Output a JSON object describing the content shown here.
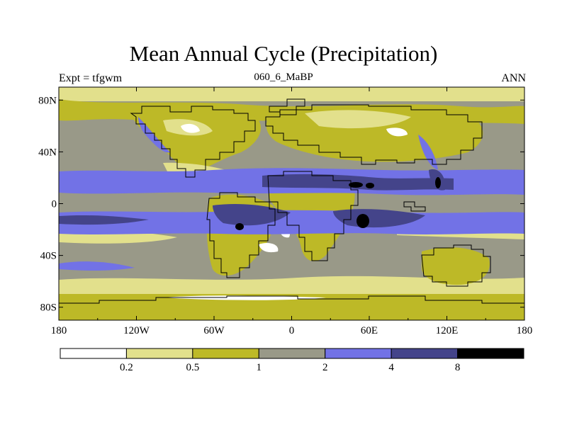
{
  "chart_data": {
    "type": "heatmap",
    "title": "Mean Annual Cycle (Precipitation)",
    "left_label": "Expt = tfgwm",
    "center_label": "060_6_MaBP",
    "right_label": "ANN",
    "x_ticks": [
      "180",
      "120W",
      "60W",
      "0",
      "60E",
      "120E",
      "180"
    ],
    "y_ticks": [
      "80N",
      "40N",
      "0",
      "40S",
      "80S"
    ],
    "x_range": [
      -180,
      180
    ],
    "y_range": [
      -90,
      90
    ],
    "colorbar": {
      "levels": [
        "0.2",
        "0.5",
        "1",
        "2",
        "4",
        "8"
      ],
      "colors": [
        "#ffffff",
        "#e2e08c",
        "#bdb927",
        "#999988",
        "#7272e6",
        "#44448a",
        "#000000"
      ]
    }
  },
  "colors": {
    "ocean_base": "#999988",
    "dry_pale": "#e2e08c",
    "dry_olive": "#bdb927",
    "wet_blue": "#7272e6",
    "wet_dark": "#44448a",
    "extreme": "#000000",
    "very_dry": "#ffffff"
  }
}
